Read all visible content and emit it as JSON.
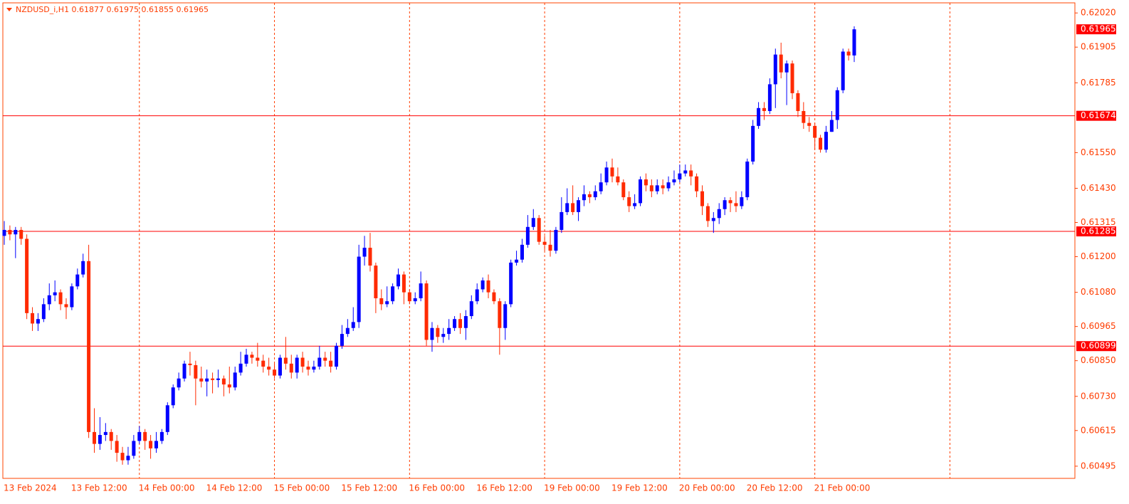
{
  "chart_data": {
    "type": "candlestick",
    "title": "NZDUSD_i,H1  0.61877 0.61975 0.61855 0.61965",
    "x_labels": [
      "13 Feb 2024",
      "13 Feb 12:00",
      "14 Feb 00:00",
      "14 Feb 12:00",
      "15 Feb 00:00",
      "15 Feb 12:00",
      "16 Feb 00:00",
      "16 Feb 12:00",
      "19 Feb 00:00",
      "19 Feb 12:00",
      "20 Feb 00:00",
      "20 Feb 12:00",
      "21 Feb 00:00"
    ],
    "ylim": [
      0.60454,
      0.62054
    ],
    "yticks": [
      {
        "value": 0.6202,
        "label": "0.62020"
      },
      {
        "value": 0.61905,
        "label": "0.61905"
      },
      {
        "value": 0.61785,
        "label": "0.61785"
      },
      {
        "value": 0.6155,
        "label": "0.61550"
      },
      {
        "value": 0.6143,
        "label": "0.61430"
      },
      {
        "value": 0.61315,
        "label": "0.61315"
      },
      {
        "value": 0.612,
        "label": "0.61200"
      },
      {
        "value": 0.6108,
        "label": "0.61080"
      },
      {
        "value": 0.60965,
        "label": "0.60965"
      },
      {
        "value": 0.6085,
        "label": "0.60850"
      },
      {
        "value": 0.6073,
        "label": "0.60730"
      },
      {
        "value": 0.60615,
        "label": "0.60615"
      },
      {
        "value": 0.60495,
        "label": "0.60495"
      }
    ],
    "levels": [
      {
        "value": 0.61674,
        "label": "0.61674"
      },
      {
        "value": 0.61285,
        "label": "0.61285"
      },
      {
        "value": 0.60899,
        "label": "0.60899"
      }
    ],
    "current_price": {
      "value": 0.61965,
      "label": "0.61965"
    },
    "up_color": "#0000ff",
    "down_color": "#ff2a00",
    "level_color": "#ff0000",
    "candles": [
      [
        0.6127,
        0.6132,
        0.6124,
        0.6129
      ],
      [
        0.6129,
        0.61305,
        0.61255,
        0.61275
      ],
      [
        0.61275,
        0.613,
        0.61195,
        0.6129
      ],
      [
        0.6129,
        0.613,
        0.6124,
        0.6126
      ],
      [
        0.6126,
        0.61275,
        0.6099,
        0.6101
      ],
      [
        0.6101,
        0.6103,
        0.6095,
        0.60975
      ],
      [
        0.60975,
        0.6101,
        0.6095,
        0.6099
      ],
      [
        0.6099,
        0.6106,
        0.6098,
        0.6104
      ],
      [
        0.6104,
        0.6111,
        0.6102,
        0.6107
      ],
      [
        0.6107,
        0.6112,
        0.6105,
        0.6108
      ],
      [
        0.6108,
        0.6109,
        0.6102,
        0.6104
      ],
      [
        0.6104,
        0.6106,
        0.6099,
        0.6103
      ],
      [
        0.6103,
        0.6111,
        0.6102,
        0.611
      ],
      [
        0.611,
        0.6116,
        0.6109,
        0.6114
      ],
      [
        0.6114,
        0.6121,
        0.6113,
        0.61185
      ],
      [
        0.61185,
        0.6124,
        0.6059,
        0.6061
      ],
      [
        0.6061,
        0.6069,
        0.6054,
        0.6057
      ],
      [
        0.6057,
        0.6066,
        0.6055,
        0.606
      ],
      [
        0.606,
        0.6064,
        0.6058,
        0.6061
      ],
      [
        0.6061,
        0.6062,
        0.6055,
        0.6058
      ],
      [
        0.6058,
        0.606,
        0.6051,
        0.6054
      ],
      [
        0.6054,
        0.6056,
        0.605,
        0.60515
      ],
      [
        0.60515,
        0.6056,
        0.605,
        0.6053
      ],
      [
        0.6053,
        0.606,
        0.6052,
        0.6058
      ],
      [
        0.6058,
        0.6063,
        0.6057,
        0.6061
      ],
      [
        0.6061,
        0.6062,
        0.6055,
        0.6058
      ],
      [
        0.6058,
        0.606,
        0.6052,
        0.60555
      ],
      [
        0.60555,
        0.6061,
        0.6054,
        0.6058
      ],
      [
        0.6058,
        0.6062,
        0.6057,
        0.6061
      ],
      [
        0.6061,
        0.6071,
        0.606,
        0.607
      ],
      [
        0.607,
        0.6077,
        0.6069,
        0.6076
      ],
      [
        0.6076,
        0.6081,
        0.6075,
        0.6079
      ],
      [
        0.6079,
        0.6085,
        0.6078,
        0.6084
      ],
      [
        0.6084,
        0.6088,
        0.608,
        0.60835
      ],
      [
        0.60835,
        0.6085,
        0.607,
        0.6079
      ],
      [
        0.6079,
        0.6083,
        0.6076,
        0.6078
      ],
      [
        0.6078,
        0.6082,
        0.6073,
        0.6079
      ],
      [
        0.6079,
        0.6081,
        0.6074,
        0.60785
      ],
      [
        0.60785,
        0.6082,
        0.6076,
        0.6079
      ],
      [
        0.6079,
        0.608,
        0.6073,
        0.6077
      ],
      [
        0.6077,
        0.6083,
        0.6074,
        0.6076
      ],
      [
        0.6076,
        0.6083,
        0.6075,
        0.6081
      ],
      [
        0.6081,
        0.6088,
        0.608,
        0.6084
      ],
      [
        0.6084,
        0.6089,
        0.6083,
        0.6087
      ],
      [
        0.6087,
        0.6088,
        0.6084,
        0.6086
      ],
      [
        0.6086,
        0.6091,
        0.6083,
        0.6085
      ],
      [
        0.6085,
        0.6087,
        0.6081,
        0.6083
      ],
      [
        0.6083,
        0.6086,
        0.608,
        0.6082
      ],
      [
        0.6082,
        0.6084,
        0.6079,
        0.608
      ],
      [
        0.608,
        0.6087,
        0.6079,
        0.6086
      ],
      [
        0.6086,
        0.6093,
        0.6082,
        0.6084
      ],
      [
        0.6084,
        0.6087,
        0.6079,
        0.6081
      ],
      [
        0.6081,
        0.6087,
        0.6079,
        0.6086
      ],
      [
        0.6086,
        0.6088,
        0.6081,
        0.6083
      ],
      [
        0.6083,
        0.6085,
        0.608,
        0.6082
      ],
      [
        0.6082,
        0.6085,
        0.6081,
        0.6083
      ],
      [
        0.6083,
        0.609,
        0.6082,
        0.6086
      ],
      [
        0.6086,
        0.6088,
        0.6083,
        0.6085
      ],
      [
        0.6085,
        0.6088,
        0.6081,
        0.6083
      ],
      [
        0.6083,
        0.6091,
        0.6082,
        0.609
      ],
      [
        0.609,
        0.6097,
        0.6089,
        0.6094
      ],
      [
        0.6094,
        0.6099,
        0.6093,
        0.6096
      ],
      [
        0.6096,
        0.6103,
        0.6095,
        0.6098
      ],
      [
        0.6098,
        0.6124,
        0.6096,
        0.612
      ],
      [
        0.612,
        0.6127,
        0.6117,
        0.6123
      ],
      [
        0.6123,
        0.6128,
        0.6115,
        0.6117
      ],
      [
        0.6117,
        0.6118,
        0.6101,
        0.6106
      ],
      [
        0.6106,
        0.6109,
        0.6102,
        0.6104
      ],
      [
        0.6104,
        0.611,
        0.6103,
        0.6105
      ],
      [
        0.6105,
        0.6111,
        0.6104,
        0.611
      ],
      [
        0.611,
        0.6116,
        0.6109,
        0.6114
      ],
      [
        0.6114,
        0.6115,
        0.6104,
        0.6108
      ],
      [
        0.6108,
        0.6109,
        0.6104,
        0.6105
      ],
      [
        0.6105,
        0.6108,
        0.6104,
        0.6106
      ],
      [
        0.6106,
        0.6115,
        0.6105,
        0.6111
      ],
      [
        0.6111,
        0.6112,
        0.609,
        0.6092
      ],
      [
        0.6092,
        0.6098,
        0.6088,
        0.6096
      ],
      [
        0.6096,
        0.6097,
        0.6091,
        0.6093
      ],
      [
        0.6093,
        0.6096,
        0.6091,
        0.6094
      ],
      [
        0.6094,
        0.6099,
        0.6092,
        0.6096
      ],
      [
        0.6096,
        0.61,
        0.6095,
        0.6099
      ],
      [
        0.6099,
        0.6101,
        0.6094,
        0.6096
      ],
      [
        0.6096,
        0.6102,
        0.6092,
        0.61
      ],
      [
        0.61,
        0.6107,
        0.6099,
        0.6105
      ],
      [
        0.6105,
        0.6111,
        0.6104,
        0.6109
      ],
      [
        0.6109,
        0.6113,
        0.6108,
        0.6112
      ],
      [
        0.6112,
        0.6114,
        0.6106,
        0.6108
      ],
      [
        0.6108,
        0.6109,
        0.6104,
        0.6105
      ],
      [
        0.6105,
        0.6106,
        0.6087,
        0.6096
      ],
      [
        0.6096,
        0.6105,
        0.6092,
        0.6104
      ],
      [
        0.6104,
        0.6119,
        0.6103,
        0.6118
      ],
      [
        0.6118,
        0.6122,
        0.6117,
        0.6119
      ],
      [
        0.6119,
        0.6126,
        0.6118,
        0.6124
      ],
      [
        0.6124,
        0.6134,
        0.6123,
        0.613
      ],
      [
        0.613,
        0.6136,
        0.6129,
        0.6133
      ],
      [
        0.6133,
        0.6134,
        0.6124,
        0.6125
      ],
      [
        0.6125,
        0.6127,
        0.6122,
        0.6124
      ],
      [
        0.6124,
        0.6129,
        0.612,
        0.6122
      ],
      [
        0.6122,
        0.613,
        0.6121,
        0.6129
      ],
      [
        0.6129,
        0.614,
        0.6128,
        0.6135
      ],
      [
        0.6135,
        0.6143,
        0.6134,
        0.6138
      ],
      [
        0.6138,
        0.6144,
        0.6134,
        0.6135
      ],
      [
        0.6135,
        0.614,
        0.6132,
        0.6139
      ],
      [
        0.6139,
        0.6144,
        0.6137,
        0.6141
      ],
      [
        0.6141,
        0.6142,
        0.6138,
        0.614
      ],
      [
        0.614,
        0.6144,
        0.6139,
        0.6142
      ],
      [
        0.6142,
        0.6148,
        0.6141,
        0.6145
      ],
      [
        0.6145,
        0.6152,
        0.6144,
        0.615
      ],
      [
        0.615,
        0.6153,
        0.6145,
        0.6147
      ],
      [
        0.6147,
        0.615,
        0.6144,
        0.6145
      ],
      [
        0.6145,
        0.6146,
        0.6139,
        0.614
      ],
      [
        0.614,
        0.6142,
        0.6135,
        0.6137
      ],
      [
        0.6137,
        0.6141,
        0.6136,
        0.6138
      ],
      [
        0.6138,
        0.6147,
        0.6137,
        0.6146
      ],
      [
        0.6146,
        0.6148,
        0.6142,
        0.6144
      ],
      [
        0.6144,
        0.6146,
        0.614,
        0.6142
      ],
      [
        0.6142,
        0.6146,
        0.6141,
        0.6144
      ],
      [
        0.6144,
        0.6146,
        0.6141,
        0.6143
      ],
      [
        0.6143,
        0.6147,
        0.6142,
        0.6145
      ],
      [
        0.6145,
        0.6149,
        0.6144,
        0.6146
      ],
      [
        0.6146,
        0.6151,
        0.6145,
        0.6148
      ],
      [
        0.6148,
        0.6151,
        0.6147,
        0.6149
      ],
      [
        0.6149,
        0.6151,
        0.6144,
        0.6147
      ],
      [
        0.6147,
        0.6148,
        0.614,
        0.6142
      ],
      [
        0.6142,
        0.6144,
        0.6134,
        0.6137
      ],
      [
        0.6137,
        0.6138,
        0.613,
        0.6132
      ],
      [
        0.6132,
        0.6135,
        0.6128,
        0.6133
      ],
      [
        0.6133,
        0.6138,
        0.6131,
        0.6136
      ],
      [
        0.6136,
        0.614,
        0.6134,
        0.6139
      ],
      [
        0.6139,
        0.614,
        0.6135,
        0.6138
      ],
      [
        0.6138,
        0.6142,
        0.6135,
        0.6137
      ],
      [
        0.6137,
        0.6142,
        0.6136,
        0.614
      ],
      [
        0.614,
        0.6153,
        0.6139,
        0.6152
      ],
      [
        0.6152,
        0.6166,
        0.6151,
        0.6164
      ],
      [
        0.6164,
        0.6172,
        0.6163,
        0.617
      ],
      [
        0.617,
        0.6172,
        0.6166,
        0.6169
      ],
      [
        0.6169,
        0.618,
        0.6168,
        0.6178
      ],
      [
        0.6178,
        0.619,
        0.617,
        0.6188
      ],
      [
        0.6188,
        0.6192,
        0.618,
        0.6182
      ],
      [
        0.6182,
        0.6186,
        0.6171,
        0.6185
      ],
      [
        0.6185,
        0.6186,
        0.6173,
        0.6175
      ],
      [
        0.6175,
        0.6176,
        0.6167,
        0.6169
      ],
      [
        0.6169,
        0.6172,
        0.6163,
        0.6165
      ],
      [
        0.6165,
        0.6167,
        0.6162,
        0.6164
      ],
      [
        0.6164,
        0.6165,
        0.6156,
        0.616
      ],
      [
        0.616,
        0.6161,
        0.6155,
        0.6156
      ],
      [
        0.6156,
        0.6164,
        0.6155,
        0.6162
      ],
      [
        0.6162,
        0.6169,
        0.6162,
        0.6166
      ],
      [
        0.6166,
        0.6177,
        0.6163,
        0.6176
      ],
      [
        0.6176,
        0.619,
        0.6175,
        0.6189
      ],
      [
        0.6189,
        0.619,
        0.6186,
        0.61877
      ],
      [
        0.61877,
        0.61975,
        0.61855,
        0.61965
      ]
    ]
  }
}
